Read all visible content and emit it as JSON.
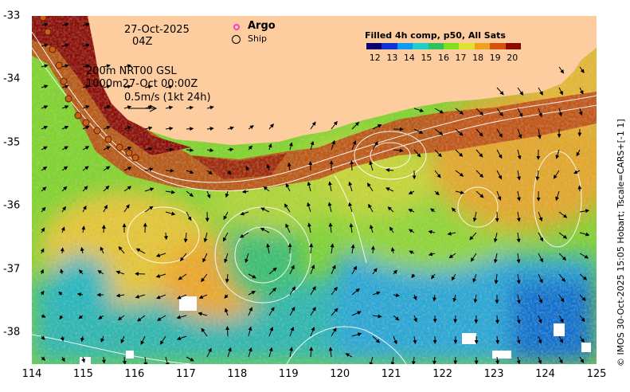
{
  "map": {
    "date": "27-Oct-2025",
    "time": "04Z",
    "legend": {
      "argo": "Argo",
      "ship": "Ship"
    },
    "depth_lines": [
      "200m  NRT00 GSL",
      "1000m27-Oct 00:00Z"
    ],
    "scale_label": "0.5m/s (1kt 24h)",
    "credit": "© IMOS 30-Oct-2025 15:05 Hobart; Tscale=CARS+[-1 1]",
    "colors": {
      "land": "#fdcc9f",
      "argo_marker": "#ff3cc8",
      "contour": "#ffffff",
      "arrow": "#000000"
    }
  },
  "colorbar": {
    "title": "Filled 4h comp, p50, All Sats",
    "ticks": [
      "12",
      "13",
      "14",
      "15",
      "16",
      "17",
      "18",
      "19",
      "20"
    ],
    "range": [
      11.5,
      20.5
    ],
    "colors": [
      "#08006e",
      "#1030d8",
      "#0a9cf0",
      "#20d0c8",
      "#30c060",
      "#80e020",
      "#e0e030",
      "#f0a020",
      "#d85010",
      "#8a0a00"
    ]
  },
  "axes": {
    "x_ticks": [
      "114",
      "115",
      "116",
      "117",
      "118",
      "119",
      "120",
      "121",
      "122",
      "123",
      "124",
      "125"
    ],
    "y_ticks": [
      "-33",
      "-34",
      "-35",
      "-36",
      "-37",
      "-38"
    ],
    "lon_range": [
      114,
      125
    ],
    "lat_range": [
      -38.5,
      -33
    ]
  }
}
